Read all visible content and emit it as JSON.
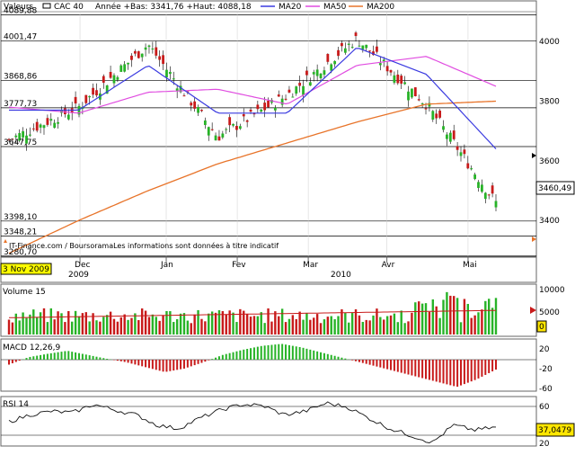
{
  "header": {
    "label": "Valeurs",
    "index": "CAC 40",
    "range": "Année +Bas: 3341,76 +Haut: 4088,18",
    "ma20": "MA20",
    "ma50": "MA50",
    "ma200": "MA200"
  },
  "main": {
    "left_levels": [
      "4089,88",
      "4001,47",
      "3868,86",
      "3777,73",
      "3647,75",
      "3398,10",
      "3348,21",
      "3280,70"
    ],
    "right_ticks": [
      "4000",
      "3800",
      "3600",
      "3400"
    ],
    "last_value": "3460,49",
    "attribution": "IT-Finance.com / BoursoramaLes informations sont données à titre indicatif"
  },
  "dates": {
    "start_badge": "3 Nov 2009",
    "months": [
      "Dec",
      "Jan",
      "Fev",
      "Mar",
      "Avr",
      "Mai"
    ],
    "years": [
      "2009",
      "2010"
    ]
  },
  "volume": {
    "label": "Volume 15",
    "ticks": [
      "10000",
      "5000"
    ],
    "badge": "0"
  },
  "macd": {
    "label": "MACD 12,26,9",
    "ticks": [
      "20",
      "-20",
      "-60"
    ]
  },
  "rsi": {
    "label": "RSI 14",
    "ticks": [
      "60",
      "20"
    ],
    "last_value": "37,0479"
  },
  "colors": {
    "up": "#27b327",
    "down": "#c81a1a",
    "ma20": "#3a3ae0",
    "ma50": "#e04ce0",
    "ma200": "#e8742a",
    "badge": "#ffff00",
    "rsi_badge": "#ffe600"
  },
  "chart_data": [
    {
      "type": "line",
      "title": "CAC 40",
      "x": [
        "2009-11-03",
        "2009-12-01",
        "2010-01-04",
        "2010-02-01",
        "2010-03-01",
        "2010-04-01",
        "2010-05-03",
        "2010-05-14"
      ],
      "series": [
        {
          "name": "CAC 40",
          "values": [
            3670,
            3780,
            3990,
            3680,
            3820,
            4010,
            3790,
            3460
          ]
        },
        {
          "name": "MA20",
          "values": [
            3770,
            3770,
            3920,
            3760,
            3760,
            3980,
            3890,
            3640
          ]
        },
        {
          "name": "MA50",
          "values": [
            3780,
            3760,
            3830,
            3840,
            3790,
            3920,
            3950,
            3850
          ]
        },
        {
          "name": "MA200",
          "values": [
            3290,
            3400,
            3500,
            3590,
            3660,
            3730,
            3790,
            3800
          ]
        }
      ],
      "ylim": [
        3280,
        4100
      ]
    },
    {
      "type": "bar",
      "title": "Volume 15",
      "ylim": [
        0,
        11000
      ]
    },
    {
      "type": "bar",
      "title": "MACD 12,26,9",
      "ylim": [
        -65,
        35
      ]
    },
    {
      "type": "line",
      "title": "RSI 14",
      "ylim": [
        10,
        80
      ]
    }
  ]
}
